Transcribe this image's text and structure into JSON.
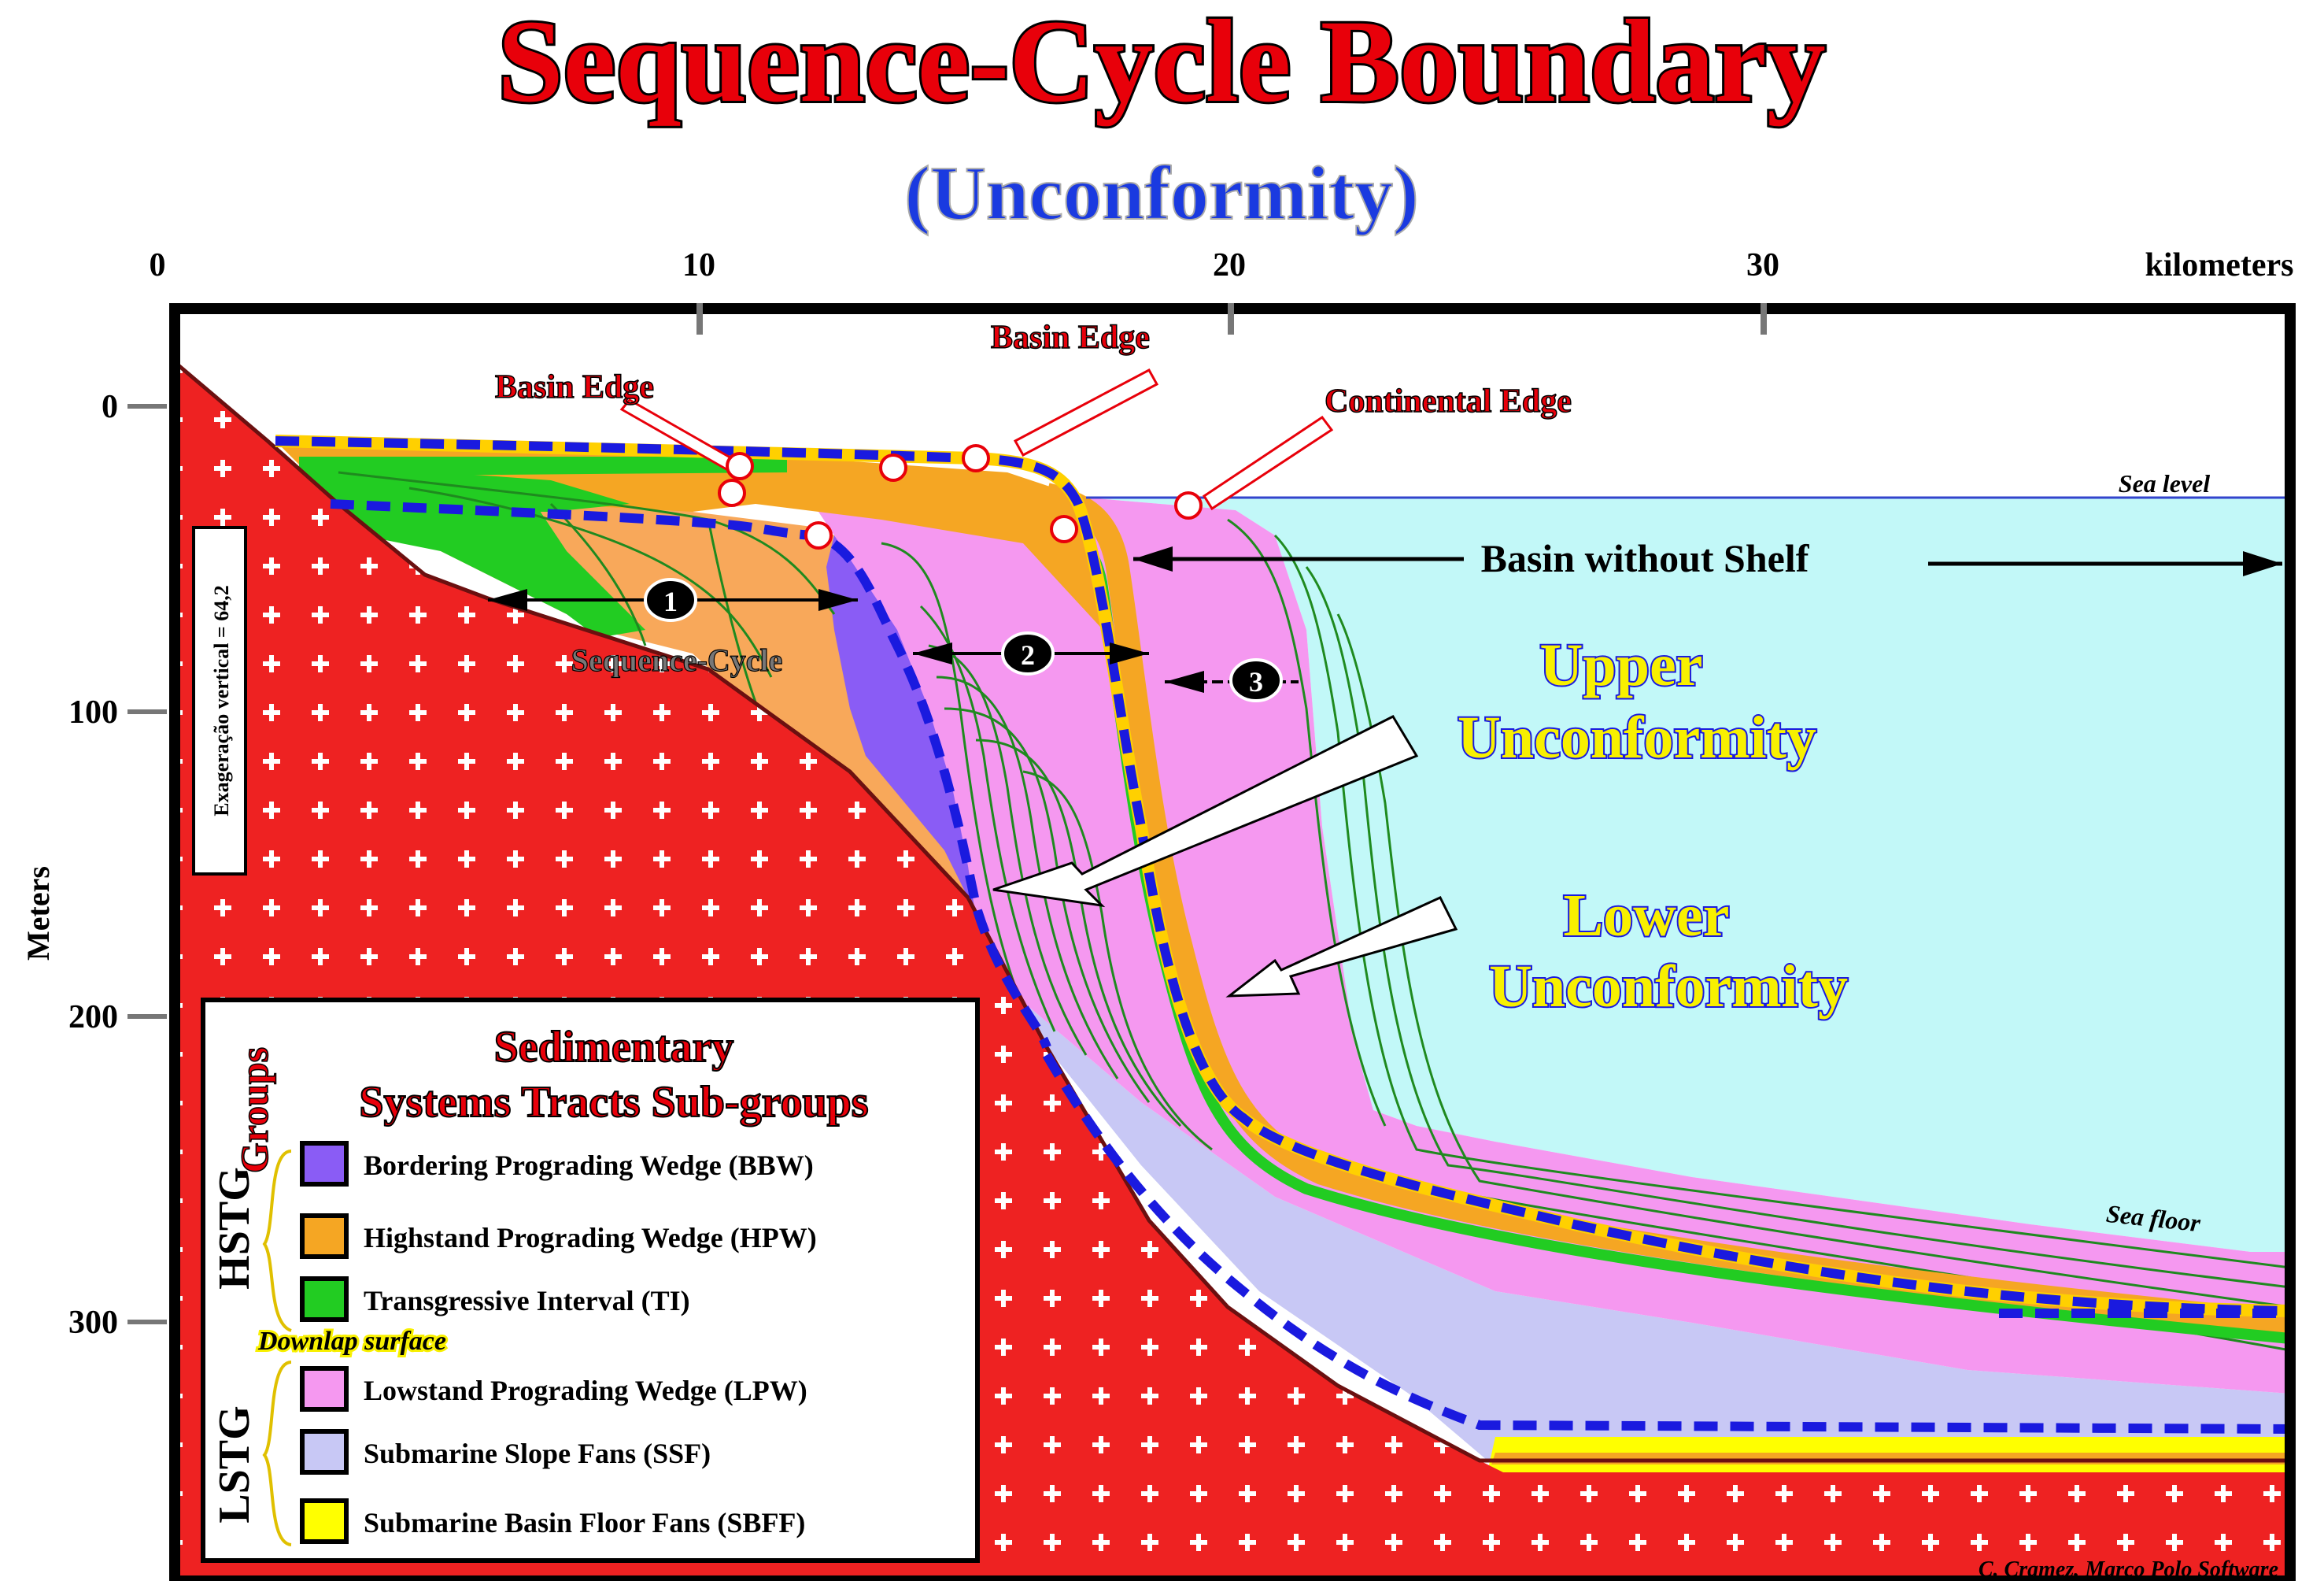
{
  "title": "Sequence-Cycle Boundary",
  "subtitle": "(Unconformity)",
  "x_axis": {
    "unit_label": "kilometers",
    "ticks": [
      "0",
      "10",
      "20",
      "30"
    ]
  },
  "y_axis": {
    "label": "Meters",
    "ticks": [
      "0",
      "100",
      "200",
      "300"
    ]
  },
  "exaggeration_label": "Exageração vertical = 64,2",
  "annotations": {
    "basin_edge_1": "Basin Edge",
    "basin_edge_2": "Basin Edge",
    "continental_edge": "Continental Edge",
    "sea_level": "Sea level",
    "sea_floor": "Sea floor",
    "basin_without_shelf": "Basin without Shelf",
    "sequence_cycle": "Sequence-Cycle",
    "upper_unconformity_1": "Upper",
    "upper_unconformity_2": "Unconformity",
    "lower_unconformity_1": "Lower",
    "lower_unconformity_2": "Unconformity",
    "marker_1": "1",
    "marker_2": "2",
    "marker_3": "3"
  },
  "legend": {
    "title_line1": "Sedimentary",
    "title_line2": "Systems Tracts Sub-groups",
    "groups_label": "Groups",
    "hstg_label": "HSTG",
    "lstg_label": "LSTG",
    "downlap_label": "Downlap surface",
    "items": [
      {
        "label": "Bordering Prograding Wedge (BBW)",
        "color": "#8a5cf5"
      },
      {
        "label": "Highstand Prograding Wedge (HPW)",
        "color": "#f5a623"
      },
      {
        "label": "Transgressive Interval (TI)",
        "color": "#22cc22"
      },
      {
        "label": "Lowstand Prograding Wedge (LPW)",
        "color": "#f598f0"
      },
      {
        "label": "Submarine Slope Fans (SSF)",
        "color": "#c8c8f5"
      },
      {
        "label": "Submarine Basin Floor Fans (SBFF)",
        "color": "#ffff00"
      }
    ]
  },
  "credit": "C. Cramez, Marco Polo Software",
  "colors": {
    "basement": "#ee2222",
    "sea": "#c2f8f8",
    "unconformity": "#1a1adf",
    "title_red": "#e8000a",
    "subtitle_blue": "#1a3ae0",
    "label_yellow": "#f8f000"
  }
}
